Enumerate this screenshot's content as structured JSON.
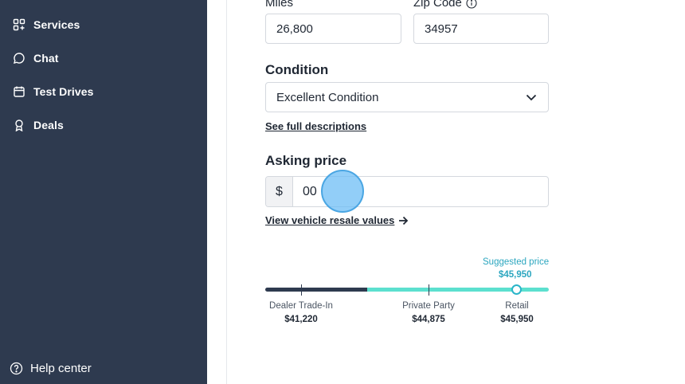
{
  "sidebar": {
    "items": [
      {
        "label": "Services",
        "icon": "grid-plus-icon"
      },
      {
        "label": "Chat",
        "icon": "chat-bubble-icon"
      },
      {
        "label": "Test Drives",
        "icon": "calendar-icon"
      },
      {
        "label": "Deals",
        "icon": "award-ribbon-icon"
      }
    ],
    "help_label": "Help center",
    "help_icon": "question-circle-icon"
  },
  "form": {
    "miles_label": "Miles",
    "miles_value": "26,800",
    "zip_label": "Zip Code",
    "zip_value": "34957",
    "condition_title": "Condition",
    "condition_value": "Excellent Condition",
    "descriptions_link": "See full descriptions",
    "asking_title": "Asking price",
    "currency_symbol": "$",
    "asking_value": "00",
    "resale_link": "View vehicle resale values"
  },
  "price_scale": {
    "suggested_label": "Suggested price",
    "suggested_value": "$45,950",
    "points": [
      {
        "label": "Dealer Trade-In",
        "value": "$41,220"
      },
      {
        "label": "Private Party",
        "value": "$44,875"
      },
      {
        "label": "Retail",
        "value": "$45,950"
      }
    ]
  },
  "colors": {
    "sidebar_bg": "#2e3a4f",
    "accent_teal": "#5ce0cf",
    "suggested_text": "#2ba6bf"
  }
}
